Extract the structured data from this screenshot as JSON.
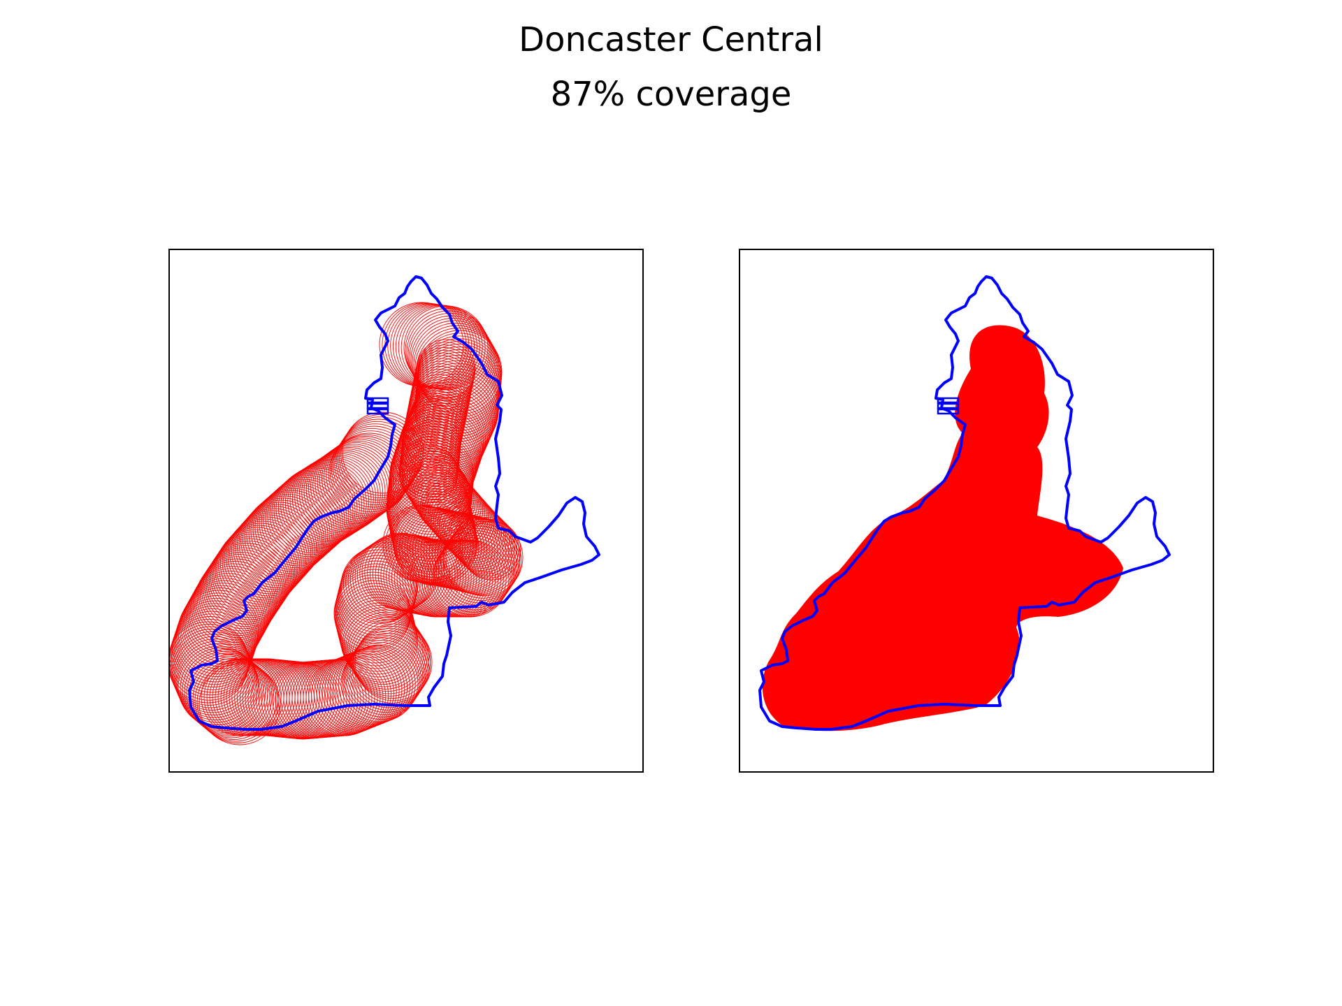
{
  "title": "Doncaster Central",
  "subtitle": "87% coverage",
  "colors": {
    "boundary": "#0000ff",
    "coverage": "#ff0000",
    "frame": "#000000",
    "background": "#ffffff"
  },
  "panels": [
    {
      "id": "left",
      "style": "outline-circles"
    },
    {
      "id": "right",
      "style": "filled-union"
    }
  ],
  "coverage_percent": 87
}
